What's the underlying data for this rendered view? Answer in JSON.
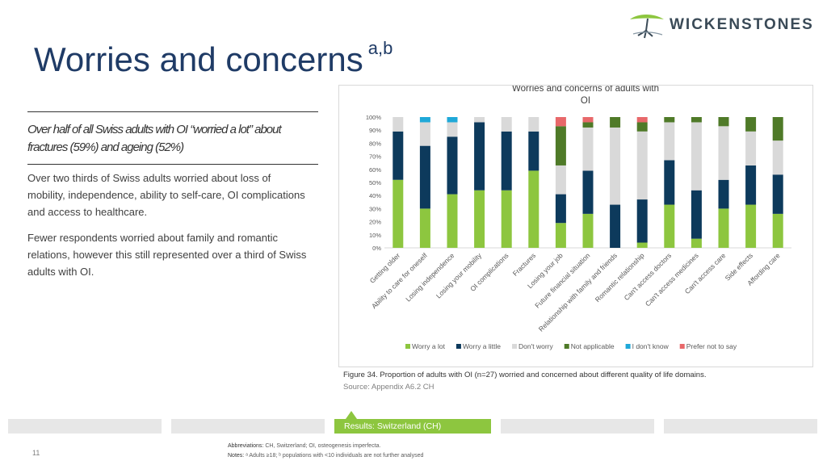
{
  "logo": {
    "text": "WICKENSTONES"
  },
  "title": {
    "main": "Worries and concerns",
    "superscript": "a,b"
  },
  "highlight": {
    "line1": "Over half of all Swiss adults with OI “worried a lot” about",
    "line2": "fractures (59%) and ageing (52%)"
  },
  "paragraphs": {
    "p1_line1": "Over two thirds of Swiss adults worried about loss of",
    "p1_line2": "mobility, independence, ability to self-care, OI complications",
    "p1_line3": "and access to healthcare.",
    "p2_line1": "Fewer respondents worried about family and romantic",
    "p2_line2": "relations, however this still represented over a third of Swiss",
    "p2_line3": "adults with OI."
  },
  "figure": {
    "caption": "Figure 34. Proportion of adults with OI (n=27) worried and concerned about different quality of life domains.",
    "source": "Source: Appendix A6.2 CH"
  },
  "footer": {
    "section_label": "Results: Switzerland (CH)",
    "page_number": "11",
    "abbreviations_label": "Abbreviations:",
    "abbreviations_text": "CH, Switzerland; OI, osteogenesis imperfecta.",
    "notes_label": "Notes:",
    "notes_text": "ᵃ Adults ≥18; ᵇ populations with <10 individuals are not further analysed"
  },
  "colors": {
    "worry_a_lot": "#8dc63f",
    "worry_a_little": "#0d3a5c",
    "dont_worry": "#d9d9d9",
    "not_applicable": "#4f7a28",
    "i_dont_know": "#1fa8d8",
    "prefer_not_to_say": "#e8686a",
    "title": "#1f3b66",
    "footer_green": "#8dc63f"
  },
  "chart_data": {
    "type": "bar",
    "stacked": true,
    "title_line1": "Worries and concerns of adults with",
    "title_line2": "OI",
    "ylim": [
      0,
      100
    ],
    "yticks": [
      "0%",
      "10%",
      "20%",
      "30%",
      "40%",
      "50%",
      "60%",
      "70%",
      "80%",
      "90%",
      "100%"
    ],
    "legend_position": "bottom",
    "categories": [
      "Getting older",
      "Ability to care for oneself",
      "Losing independence",
      "Losing your mobility",
      "OI complications",
      "Fractures",
      "Losing your job",
      "Future financial situation",
      "Relationship with family and friends",
      "Romantic relationship",
      "Can't access doctors",
      "Can't access medicines",
      "Can't access care",
      "Side effects",
      "Affording care"
    ],
    "series": [
      {
        "name": "Worry a lot",
        "key": "worry_a_lot",
        "values": [
          52,
          30,
          41,
          44,
          44,
          59,
          19,
          26,
          0,
          4,
          33,
          7,
          30,
          33,
          26
        ]
      },
      {
        "name": "Worry a little",
        "key": "worry_a_little",
        "values": [
          37,
          48,
          44,
          52,
          45,
          30,
          22,
          33,
          33,
          33,
          34,
          37,
          22,
          30,
          30
        ]
      },
      {
        "name": "Don't worry",
        "key": "dont_worry",
        "values": [
          11,
          18,
          11,
          4,
          11,
          11,
          22,
          33,
          59,
          52,
          29,
          52,
          41,
          26,
          26
        ]
      },
      {
        "name": "Not applicable",
        "key": "not_applicable",
        "values": [
          0,
          0,
          0,
          0,
          0,
          0,
          30,
          4,
          8,
          7,
          4,
          4,
          7,
          11,
          18
        ]
      },
      {
        "name": "I don't know",
        "key": "i_dont_know",
        "values": [
          0,
          4,
          4,
          0,
          0,
          0,
          0,
          0,
          0,
          0,
          0,
          0,
          0,
          0,
          0
        ]
      },
      {
        "name": "Prefer not to say",
        "key": "prefer_not_to_say",
        "values": [
          0,
          0,
          0,
          0,
          0,
          0,
          7,
          4,
          0,
          4,
          0,
          0,
          0,
          0,
          0
        ]
      }
    ]
  }
}
